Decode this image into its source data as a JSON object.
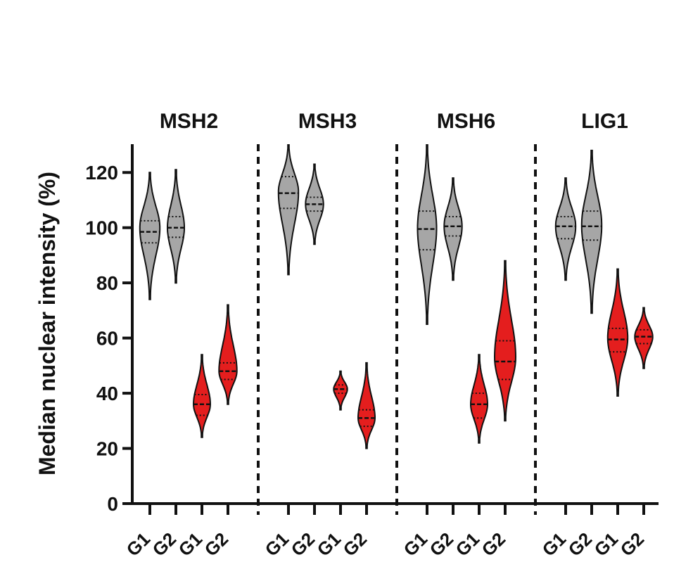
{
  "chart_data": {
    "type": "violin",
    "ylabel": "Median nuclear intensity (%)",
    "ylim": [
      0,
      130
    ],
    "yticks": [
      0,
      20,
      40,
      60,
      80,
      100,
      120
    ],
    "colors": {
      "G1_control": "#a6a6a6",
      "G2_control": "#a6a6a6",
      "G1_treated": "#e41e1e",
      "G2_treated": "#e41e1e"
    },
    "panels": [
      {
        "title": "MSH2",
        "violins": [
          {
            "label": "G1",
            "color": "#a6a6a6",
            "min": 74,
            "max": 120,
            "median": 98.5,
            "q1": 94.5,
            "q3": 102.5,
            "mode": 100,
            "spread": 0.95
          },
          {
            "label": "G2",
            "color": "#a6a6a6",
            "min": 80,
            "max": 121,
            "median": 100,
            "q1": 96.5,
            "q3": 104,
            "mode": 100,
            "spread": 0.8
          },
          {
            "label": "G1",
            "color": "#e41e1e",
            "min": 24,
            "max": 54,
            "median": 36,
            "q1": 32,
            "q3": 39.5,
            "mode": 36,
            "spread": 0.8
          },
          {
            "label": "G2",
            "color": "#e41e1e",
            "min": 36,
            "max": 72,
            "median": 48,
            "q1": 45,
            "q3": 51,
            "mode": 48,
            "spread": 0.85
          }
        ]
      },
      {
        "title": "MSH3",
        "violins": [
          {
            "label": "G1",
            "color": "#a6a6a6",
            "min": 83,
            "max": 130,
            "median": 112.5,
            "q1": 107,
            "q3": 118.5,
            "mode": 113,
            "spread": 0.95
          },
          {
            "label": "G2",
            "color": "#a6a6a6",
            "min": 94,
            "max": 123,
            "median": 108.5,
            "q1": 106,
            "q3": 111,
            "mode": 108.5,
            "spread": 0.85
          },
          {
            "label": "G1",
            "color": "#e41e1e",
            "min": 34,
            "max": 48,
            "median": 41.5,
            "q1": 40,
            "q3": 43,
            "mode": 41.5,
            "spread": 0.65
          },
          {
            "label": "G2",
            "color": "#e41e1e",
            "min": 20,
            "max": 51,
            "median": 31,
            "q1": 28,
            "q3": 34,
            "mode": 31,
            "spread": 0.8
          }
        ]
      },
      {
        "title": "MSH6",
        "violins": [
          {
            "label": "G1",
            "color": "#a6a6a6",
            "min": 65,
            "max": 130,
            "median": 99.5,
            "q1": 92,
            "q3": 106,
            "mode": 100,
            "spread": 0.9
          },
          {
            "label": "G2",
            "color": "#a6a6a6",
            "min": 81,
            "max": 118,
            "median": 100.5,
            "q1": 97,
            "q3": 104,
            "mode": 100.5,
            "spread": 0.85
          },
          {
            "label": "G1",
            "color": "#e41e1e",
            "min": 22,
            "max": 54,
            "median": 36,
            "q1": 31,
            "q3": 40,
            "mode": 36,
            "spread": 0.8
          },
          {
            "label": "G2",
            "color": "#e41e1e",
            "min": 30,
            "max": 88,
            "median": 51.5,
            "q1": 45,
            "q3": 59,
            "mode": 53,
            "spread": 1.0
          }
        ]
      },
      {
        "title": "LIG1",
        "violins": [
          {
            "label": "G1",
            "color": "#a6a6a6",
            "min": 81,
            "max": 118,
            "median": 100.5,
            "q1": 96,
            "q3": 104,
            "mode": 100.5,
            "spread": 0.95
          },
          {
            "label": "G2",
            "color": "#a6a6a6",
            "min": 69,
            "max": 128,
            "median": 100.5,
            "q1": 95.5,
            "q3": 106,
            "mode": 101,
            "spread": 0.95
          },
          {
            "label": "G1",
            "color": "#e41e1e",
            "min": 39,
            "max": 85,
            "median": 59.5,
            "q1": 55,
            "q3": 63.5,
            "mode": 60,
            "spread": 0.95
          },
          {
            "label": "G2",
            "color": "#e41e1e",
            "min": 49,
            "max": 71,
            "median": 60.5,
            "q1": 58,
            "q3": 63,
            "mode": 60.5,
            "spread": 0.85
          }
        ]
      }
    ],
    "grid": false,
    "legend": "none",
    "panel_separators": "dashed"
  }
}
